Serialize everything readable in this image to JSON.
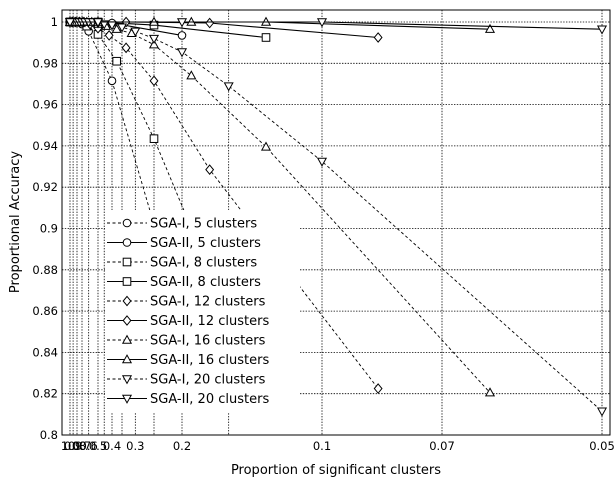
{
  "chart_data": {
    "type": "line",
    "title": "",
    "xlabel": "Proportion of significant clusters",
    "ylabel": "Proportional Accuracy",
    "x_scale": "reciprocal",
    "xlim": [
      1.0,
      0.05
    ],
    "ylim": [
      0.8,
      1.0
    ],
    "grid": true,
    "legend_position": "center-left",
    "x_tick_labels": [
      {
        "value": 1.0,
        "label": "1.0"
      },
      {
        "value": 0.9,
        "label": "0.9"
      },
      {
        "value": 0.8,
        "label": "0.8"
      },
      {
        "value": 0.7,
        "label": "0.7"
      },
      {
        "value": 0.6,
        "label": "0.6"
      },
      {
        "value": 0.5,
        "label": "0.5"
      },
      {
        "value": 0.4,
        "label": "0.4"
      },
      {
        "value": 0.3,
        "label": "0.3"
      },
      {
        "value": 0.2,
        "label": "0.2"
      },
      {
        "value": 0.1,
        "label": "0.1"
      },
      {
        "value": 0.07,
        "label": "0.07"
      },
      {
        "value": 0.05,
        "label": "0.05"
      }
    ],
    "x_grid_values": [
      1.0,
      0.9,
      0.8,
      0.7,
      0.6,
      0.5,
      0.45,
      0.4,
      0.35,
      0.3,
      0.25,
      0.2,
      0.15,
      0.1,
      0.07,
      0.05
    ],
    "y_ticks": [
      {
        "value": 0.8,
        "label": "0.8"
      },
      {
        "value": 0.82,
        "label": "0.82"
      },
      {
        "value": 0.84,
        "label": "0.84"
      },
      {
        "value": 0.86,
        "label": "0.86"
      },
      {
        "value": 0.88,
        "label": "0.88"
      },
      {
        "value": 0.9,
        "label": "0.9"
      },
      {
        "value": 0.92,
        "label": "0.92"
      },
      {
        "value": 0.94,
        "label": "0.94"
      },
      {
        "value": 0.96,
        "label": "0.96"
      },
      {
        "value": 0.98,
        "label": "0.98"
      },
      {
        "value": 1.0,
        "label": "1"
      }
    ],
    "series": [
      {
        "name": "SGA-I,  5 clusters",
        "marker": "circle",
        "dashed": true,
        "points": [
          [
            1.0,
            1.0
          ],
          [
            0.9,
            1.0
          ],
          [
            0.8,
            1.0
          ],
          [
            0.7,
            0.999
          ],
          [
            0.6,
            0.9955
          ],
          [
            0.4,
            0.9715
          ],
          [
            0.2,
            0.8555
          ]
        ]
      },
      {
        "name": "SGA-II, 5 clusters",
        "marker": "circle",
        "dashed": false,
        "points": [
          [
            1.0,
            1.0
          ],
          [
            0.8,
            1.0
          ],
          [
            0.6,
            1.0
          ],
          [
            0.4,
            0.9995
          ],
          [
            0.2,
            0.9935
          ]
        ]
      },
      {
        "name": "SGA-I,  8 clusters",
        "marker": "square",
        "dashed": true,
        "points": [
          [
            1.0,
            1.0
          ],
          [
            0.875,
            1.0
          ],
          [
            0.75,
            1.0
          ],
          [
            0.625,
            0.998
          ],
          [
            0.5,
            0.994
          ],
          [
            0.375,
            0.981
          ],
          [
            0.25,
            0.9435
          ],
          [
            0.125,
            0.8135
          ]
        ]
      },
      {
        "name": "SGA-II, 8 clusters",
        "marker": "square",
        "dashed": false,
        "points": [
          [
            1.0,
            1.0
          ],
          [
            0.75,
            1.0
          ],
          [
            0.5,
            1.0
          ],
          [
            0.25,
            0.9985
          ],
          [
            0.125,
            0.9925
          ]
        ]
      },
      {
        "name": "SGA-I,  12 clusters",
        "marker": "diamond",
        "dashed": true,
        "points": [
          [
            1.0,
            1.0
          ],
          [
            0.917,
            1.0
          ],
          [
            0.833,
            1.0
          ],
          [
            0.75,
            1.0
          ],
          [
            0.667,
            1.0
          ],
          [
            0.583,
            0.999
          ],
          [
            0.5,
            0.997
          ],
          [
            0.417,
            0.9935
          ],
          [
            0.333,
            0.9875
          ],
          [
            0.25,
            0.9715
          ],
          [
            0.167,
            0.9285
          ],
          [
            0.0833,
            0.8225
          ]
        ]
      },
      {
        "name": "SGA-II, 12 clusters",
        "marker": "diamond",
        "dashed": false,
        "points": [
          [
            1.0,
            1.0
          ],
          [
            0.75,
            1.0
          ],
          [
            0.5,
            1.0
          ],
          [
            0.333,
            1.0
          ],
          [
            0.167,
            0.9995
          ],
          [
            0.0833,
            0.9925
          ]
        ]
      },
      {
        "name": "SGA-I,  16 clusters",
        "marker": "triangle-up",
        "dashed": true,
        "points": [
          [
            1.0,
            1.0
          ],
          [
            0.9375,
            1.0
          ],
          [
            0.875,
            1.0
          ],
          [
            0.8125,
            1.0
          ],
          [
            0.75,
            1.0
          ],
          [
            0.6875,
            1.0
          ],
          [
            0.625,
            1.0
          ],
          [
            0.5625,
            1.0
          ],
          [
            0.5,
            0.999
          ],
          [
            0.4375,
            0.998
          ],
          [
            0.375,
            0.9965
          ],
          [
            0.3125,
            0.9945
          ],
          [
            0.25,
            0.989
          ],
          [
            0.1875,
            0.974
          ],
          [
            0.125,
            0.9395
          ],
          [
            0.0625,
            0.8205
          ]
        ]
      },
      {
        "name": "SGA-II, 16 clusters",
        "marker": "triangle-up",
        "dashed": false,
        "points": [
          [
            1.0,
            1.0
          ],
          [
            0.5,
            1.0
          ],
          [
            0.25,
            1.0
          ],
          [
            0.1875,
            1.0
          ],
          [
            0.125,
            1.0
          ],
          [
            0.0625,
            0.9965
          ]
        ]
      },
      {
        "name": "SGA-I,  20 clusters",
        "marker": "triangle-down",
        "dashed": true,
        "points": [
          [
            1.0,
            1.0
          ],
          [
            0.95,
            1.0
          ],
          [
            0.9,
            1.0
          ],
          [
            0.85,
            1.0
          ],
          [
            0.8,
            1.0
          ],
          [
            0.75,
            1.0
          ],
          [
            0.7,
            1.0
          ],
          [
            0.65,
            1.0
          ],
          [
            0.6,
            1.0
          ],
          [
            0.55,
            1.0
          ],
          [
            0.5,
            0.9995
          ],
          [
            0.45,
            0.999
          ],
          [
            0.4,
            0.9985
          ],
          [
            0.35,
            0.9975
          ],
          [
            0.3,
            0.9955
          ],
          [
            0.25,
            0.992
          ],
          [
            0.2,
            0.9855
          ],
          [
            0.15,
            0.969
          ],
          [
            0.1,
            0.9325
          ],
          [
            0.05,
            0.8115
          ]
        ]
      },
      {
        "name": "SGA-II, 20 clusters",
        "marker": "triangle-down",
        "dashed": false,
        "points": [
          [
            1.0,
            1.0
          ],
          [
            0.5,
            1.0
          ],
          [
            0.2,
            1.0
          ],
          [
            0.1,
            1.0
          ],
          [
            0.05,
            0.9965
          ]
        ]
      }
    ]
  }
}
